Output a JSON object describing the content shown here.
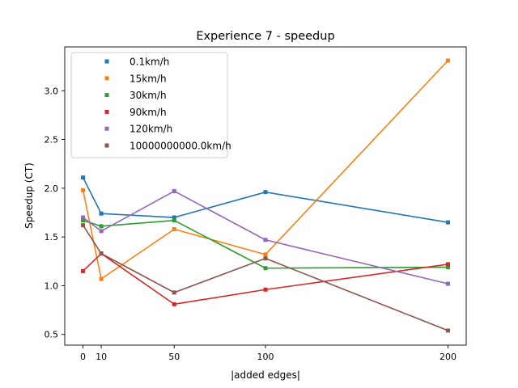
{
  "chart_data": {
    "type": "line",
    "title": "Experience 7 - speedup",
    "xlabel": "|added edges|",
    "ylabel": "Speedup (CT)",
    "x": [
      0,
      10,
      50,
      100,
      200
    ],
    "xticks": [
      "0",
      "10",
      "50",
      "100",
      "200"
    ],
    "yticks": [
      "0.5",
      "1.0",
      "1.5",
      "2.0",
      "2.5",
      "3.0"
    ],
    "xlim": [
      -10,
      210
    ],
    "ylim": [
      0.39,
      3.45
    ],
    "grid": false,
    "legend_position": "upper-left",
    "series": [
      {
        "name": "0.1km/h",
        "color": "#1f77b4",
        "values": [
          2.11,
          1.74,
          1.7,
          1.96,
          1.65
        ]
      },
      {
        "name": "15km/h",
        "color": "#ff7f0e",
        "values": [
          1.98,
          1.07,
          1.58,
          1.32,
          3.31
        ]
      },
      {
        "name": "30km/h",
        "color": "#2ca02c",
        "values": [
          1.67,
          1.61,
          1.67,
          1.18,
          1.19
        ]
      },
      {
        "name": "90km/h",
        "color": "#d62728",
        "values": [
          1.15,
          1.33,
          0.81,
          0.96,
          1.22
        ]
      },
      {
        "name": "120km/h",
        "color": "#9467bd",
        "values": [
          1.7,
          1.56,
          1.97,
          1.47,
          1.02
        ]
      },
      {
        "name": "10000000000.0km/h",
        "color": "#8c564b",
        "values": [
          1.62,
          1.33,
          0.93,
          1.28,
          0.54
        ]
      }
    ]
  }
}
